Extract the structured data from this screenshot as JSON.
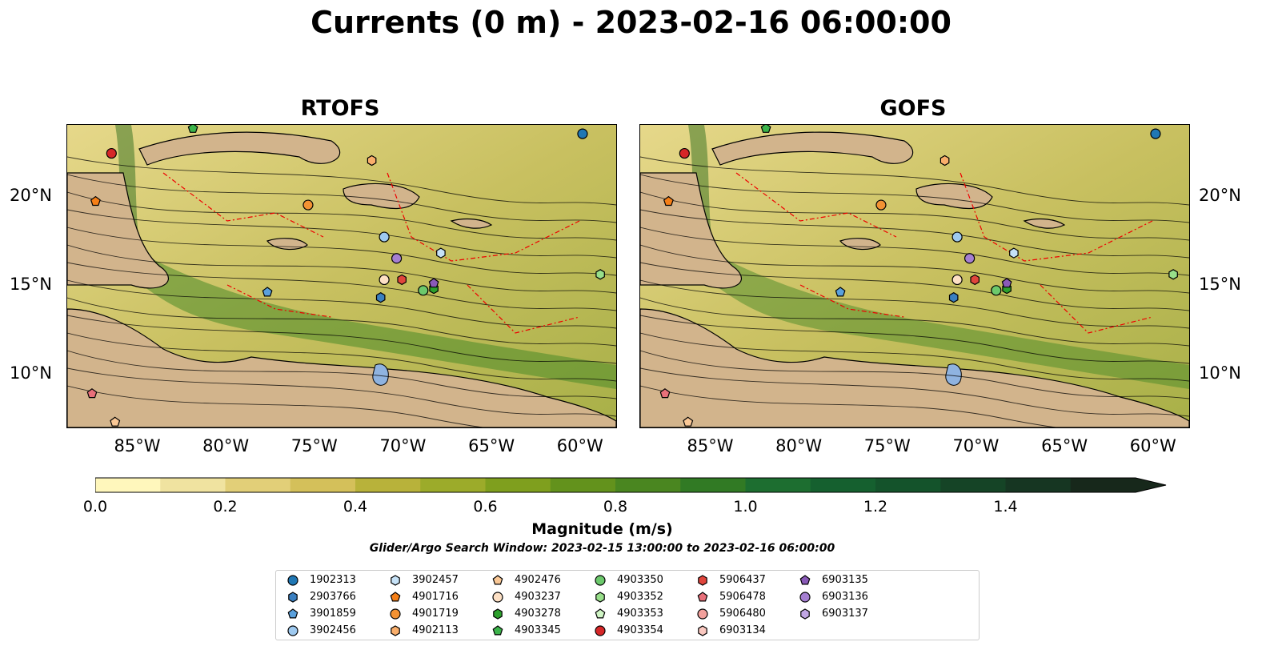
{
  "title": "Currents (0 m) - 2023-02-16 06:00:00",
  "panels": [
    {
      "title": "RTOFS"
    },
    {
      "title": "GOFS"
    }
  ],
  "lon_labels": [
    "85°W",
    "80°W",
    "75°W",
    "70°W",
    "65°W",
    "60°W"
  ],
  "lat_labels": [
    "20°N",
    "15°N",
    "10°N"
  ],
  "map_extent": {
    "lon": [
      -89,
      -58
    ],
    "lat": [
      7,
      24
    ]
  },
  "colorbar": {
    "label": "Magnitude (m/s)",
    "min": 0.0,
    "max": 1.6,
    "extend": "max",
    "tick_labels": [
      "0.0",
      "0.2",
      "0.4",
      "0.6",
      "0.8",
      "1.0",
      "1.2",
      "1.4"
    ],
    "colors": [
      "#fff7bc",
      "#f0e3a0",
      "#e2cf78",
      "#d4c05a",
      "#b8b23a",
      "#9cab2a",
      "#7f9f1e",
      "#63921c",
      "#4a8620",
      "#317a24",
      "#1d6e30",
      "#15602f",
      "#14532b",
      "#154426",
      "#163622",
      "#17281b"
    ]
  },
  "search_window": "Glider/Argo Search Window: 2023-02-15 13:00:00 to 2023-02-16 06:00:00",
  "legend": [
    {
      "id": "1902313",
      "marker": "circle",
      "color": "#1f77b4"
    },
    {
      "id": "2903766",
      "marker": "hexagon",
      "color": "#3a7fc0"
    },
    {
      "id": "3901859",
      "marker": "pentagon",
      "color": "#5aa0dc"
    },
    {
      "id": "3902456",
      "marker": "circle",
      "color": "#9ec9ef"
    },
    {
      "id": "3902457",
      "marker": "hexagon",
      "color": "#c6e2f7"
    },
    {
      "id": "4901716",
      "marker": "pentagon",
      "color": "#f57f17"
    },
    {
      "id": "4901719",
      "marker": "circle",
      "color": "#f39233"
    },
    {
      "id": "4902113",
      "marker": "hexagon",
      "color": "#f9ae6b"
    },
    {
      "id": "4902476",
      "marker": "pentagon",
      "color": "#fac896"
    },
    {
      "id": "4903237",
      "marker": "circle",
      "color": "#fde0c5"
    },
    {
      "id": "4903278",
      "marker": "hexagon",
      "color": "#2ca02c"
    },
    {
      "id": "4903345",
      "marker": "pentagon",
      "color": "#3cb44b"
    },
    {
      "id": "4903350",
      "marker": "circle",
      "color": "#6cc96c"
    },
    {
      "id": "4903352",
      "marker": "hexagon",
      "color": "#98df8a"
    },
    {
      "id": "4903353",
      "marker": "pentagon",
      "color": "#d0f5c5"
    },
    {
      "id": "4903354",
      "marker": "circle",
      "color": "#d62728"
    },
    {
      "id": "5906437",
      "marker": "hexagon",
      "color": "#e0453c"
    },
    {
      "id": "5906478",
      "marker": "pentagon",
      "color": "#e8707a"
    },
    {
      "id": "5906480",
      "marker": "circle",
      "color": "#f2a09c"
    },
    {
      "id": "6903134",
      "marker": "hexagon",
      "color": "#fac8c0"
    },
    {
      "id": "6903135",
      "marker": "pentagon",
      "color": "#8a5ab8"
    },
    {
      "id": "6903136",
      "marker": "circle",
      "color": "#a57fd1"
    },
    {
      "id": "6903137",
      "marker": "hexagon",
      "color": "#c0a6e3"
    }
  ],
  "floats": [
    {
      "lon": -59.9,
      "lat": 23.5,
      "legend": 0
    },
    {
      "lon": -71.3,
      "lat": 14.3,
      "legend": 1
    },
    {
      "lon": -77.7,
      "lat": 14.6,
      "legend": 2
    },
    {
      "lon": -71.1,
      "lat": 17.7,
      "legend": 3
    },
    {
      "lon": -67.9,
      "lat": 16.8,
      "legend": 4
    },
    {
      "lon": -87.4,
      "lat": 19.7,
      "legend": 5
    },
    {
      "lon": -75.4,
      "lat": 19.5,
      "legend": 6
    },
    {
      "lon": -71.8,
      "lat": 22.0,
      "legend": 7
    },
    {
      "lon": -86.3,
      "lat": 7.3,
      "legend": 8
    },
    {
      "lon": -71.1,
      "lat": 15.3,
      "legend": 9
    },
    {
      "lon": -68.3,
      "lat": 14.8,
      "legend": 10
    },
    {
      "lon": -81.9,
      "lat": 23.8,
      "legend": 11
    },
    {
      "lon": -68.9,
      "lat": 14.7,
      "legend": 12
    },
    {
      "lon": -58.9,
      "lat": 15.6,
      "legend": 13
    },
    {
      "lon": -86.5,
      "lat": 22.4,
      "legend": 15
    },
    {
      "lon": -70.1,
      "lat": 15.3,
      "legend": 16
    },
    {
      "lon": -87.6,
      "lat": 8.9,
      "legend": 17
    },
    {
      "lon": -68.3,
      "lat": 15.1,
      "legend": 20
    },
    {
      "lon": -70.4,
      "lat": 16.5,
      "legend": 21
    }
  ]
}
